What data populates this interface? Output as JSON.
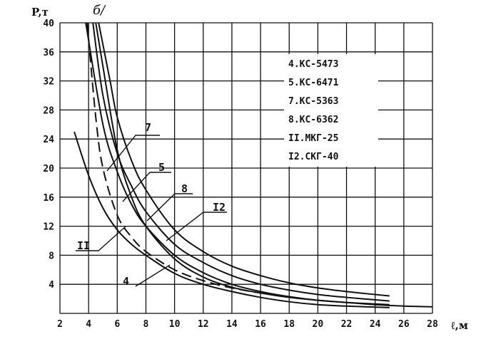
{
  "panel_label": "б/",
  "chart_data": {
    "type": "line",
    "xlabel": "ℓ,м",
    "ylabel": "P,т",
    "xlim": [
      2,
      28
    ],
    "ylim": [
      0,
      40
    ],
    "x_ticks": [
      "2",
      "4",
      "6",
      "8",
      "10",
      "12",
      "14",
      "16",
      "18",
      "20",
      "22",
      "24",
      "26",
      "28"
    ],
    "y_ticks": [
      "4",
      "8",
      "12",
      "16",
      "20",
      "24",
      "28",
      "32",
      "36",
      "40"
    ],
    "grid": true,
    "legend_position": "top-right",
    "legend": [
      "4.КС-5473",
      "5.КС-6471",
      "7.КС-5363",
      "8.КС-6362",
      "II.МКГ-25",
      "I2.СКГ-40"
    ],
    "series": [
      {
        "name": "4",
        "style": "solid",
        "x": [
          3,
          4,
          5,
          6,
          7,
          8,
          10,
          12,
          14,
          16,
          18,
          20,
          22,
          25
        ],
        "y": [
          25,
          19,
          14.5,
          11.5,
          9.5,
          8,
          5.5,
          4,
          3,
          2.2,
          1.6,
          1.2,
          1,
          0.8
        ]
      },
      {
        "name": "5",
        "style": "solid",
        "x": [
          3.8,
          5,
          6,
          7,
          8,
          10,
          12,
          14,
          16,
          18,
          20,
          22,
          25
        ],
        "y": [
          40,
          26,
          19.5,
          15,
          12,
          8,
          5.6,
          4,
          3,
          2.3,
          1.8,
          1.5,
          1.2
        ]
      },
      {
        "name": "7",
        "style": "solid",
        "x": [
          4.3,
          5,
          6,
          7,
          8,
          10,
          12,
          14,
          16,
          18,
          20,
          22,
          25
        ],
        "y": [
          40,
          30,
          22,
          17.5,
          14,
          9.5,
          7,
          5.2,
          4,
          3.2,
          2.6,
          2.2,
          1.7
        ]
      },
      {
        "name": "8",
        "style": "solid",
        "x": [
          4.7,
          5.5,
          6,
          7,
          8,
          10,
          12,
          14,
          16,
          18,
          20,
          22,
          25
        ],
        "y": [
          40,
          32,
          27,
          21,
          17,
          11.5,
          8.5,
          6.5,
          5.2,
          4.2,
          3.5,
          3,
          2.4
        ]
      },
      {
        "name": "II",
        "style": "dashed",
        "x": [
          3.9,
          4.5,
          5,
          6,
          7,
          8,
          10,
          12,
          14,
          16
        ],
        "y": [
          40,
          27,
          20,
          13.5,
          10.5,
          8.5,
          6,
          4.5,
          3.5,
          2.8
        ]
      },
      {
        "name": "I2",
        "style": "solid",
        "x": [
          4.5,
          5,
          6,
          7,
          8,
          10,
          12,
          14,
          16,
          18,
          20,
          22,
          24,
          26,
          28
        ],
        "y": [
          40,
          34,
          22.5,
          16,
          12,
          7.5,
          5,
          3.6,
          2.8,
          2.2,
          1.8,
          1.5,
          1.2,
          1,
          0.9
        ]
      }
    ],
    "curve_labels": [
      "7",
      "5",
      "8",
      "I2",
      "II",
      "4"
    ]
  }
}
